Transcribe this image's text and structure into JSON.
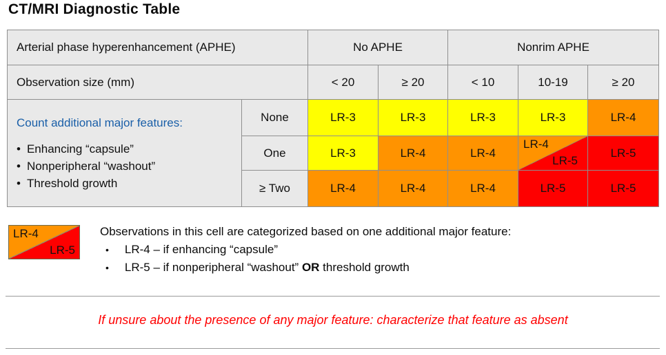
{
  "title": "CT/MRI Diagnostic Table",
  "palette": {
    "yellow": "#ffff00",
    "orange": "#ff9300",
    "red": "#fe0000",
    "header_gray": "#e9e9e9",
    "grid_border": "#8f8f8f",
    "feature_heading_blue": "#1a5fa8",
    "warning_red": "#ff0000"
  },
  "table": {
    "row1": {
      "label": "Arterial phase hyperenhancement (APHE)",
      "no_aphe": "No APHE",
      "nonrim_aphe": "Nonrim APHE"
    },
    "row2": {
      "label": "Observation size (mm)",
      "sizes": [
        "< 20",
        "≥ 20",
        "< 10",
        "10-19",
        "≥ 20"
      ]
    },
    "features_cell": {
      "heading": "Count additional major features:",
      "bullet_char": "•",
      "bullets": [
        "Enhancing “capsule”",
        "Nonperipheral “washout”",
        "Threshold growth"
      ]
    },
    "rows": [
      {
        "count": "None",
        "cells": [
          {
            "label": "LR-3",
            "color": "yellow"
          },
          {
            "label": "LR-3",
            "color": "yellow"
          },
          {
            "label": "LR-3",
            "color": "yellow"
          },
          {
            "label": "LR-3",
            "color": "yellow"
          },
          {
            "label": "LR-4",
            "color": "orange"
          }
        ]
      },
      {
        "count": "One",
        "cells": [
          {
            "label": "LR-3",
            "color": "yellow"
          },
          {
            "label": "LR-4",
            "color": "orange"
          },
          {
            "label": "LR-4",
            "color": "orange"
          },
          {
            "top_left": "LR-4",
            "bottom_right": "LR-5",
            "color": "split"
          },
          {
            "label": "LR-5",
            "color": "red"
          }
        ]
      },
      {
        "count": "≥ Two",
        "cells": [
          {
            "label": "LR-4",
            "color": "orange"
          },
          {
            "label": "LR-4",
            "color": "orange"
          },
          {
            "label": "LR-4",
            "color": "orange"
          },
          {
            "label": "LR-5",
            "color": "red"
          },
          {
            "label": "LR-5",
            "color": "red"
          }
        ]
      }
    ]
  },
  "legend": {
    "swatch": {
      "top_left": "LR-4",
      "bottom_right": "LR-5"
    },
    "intro": "Observations in this cell are categorized based on one additional major feature:",
    "bullet_char": "•",
    "items": [
      {
        "pre": "LR-4 – if enhancing “capsule”",
        "bold": "",
        "post": ""
      },
      {
        "pre": "LR-5 – if nonperipheral “washout” ",
        "bold": "OR",
        "post": " threshold growth"
      }
    ]
  },
  "footer": {
    "warning": "If unsure about the presence of any major feature: characterize that feature as absent"
  }
}
